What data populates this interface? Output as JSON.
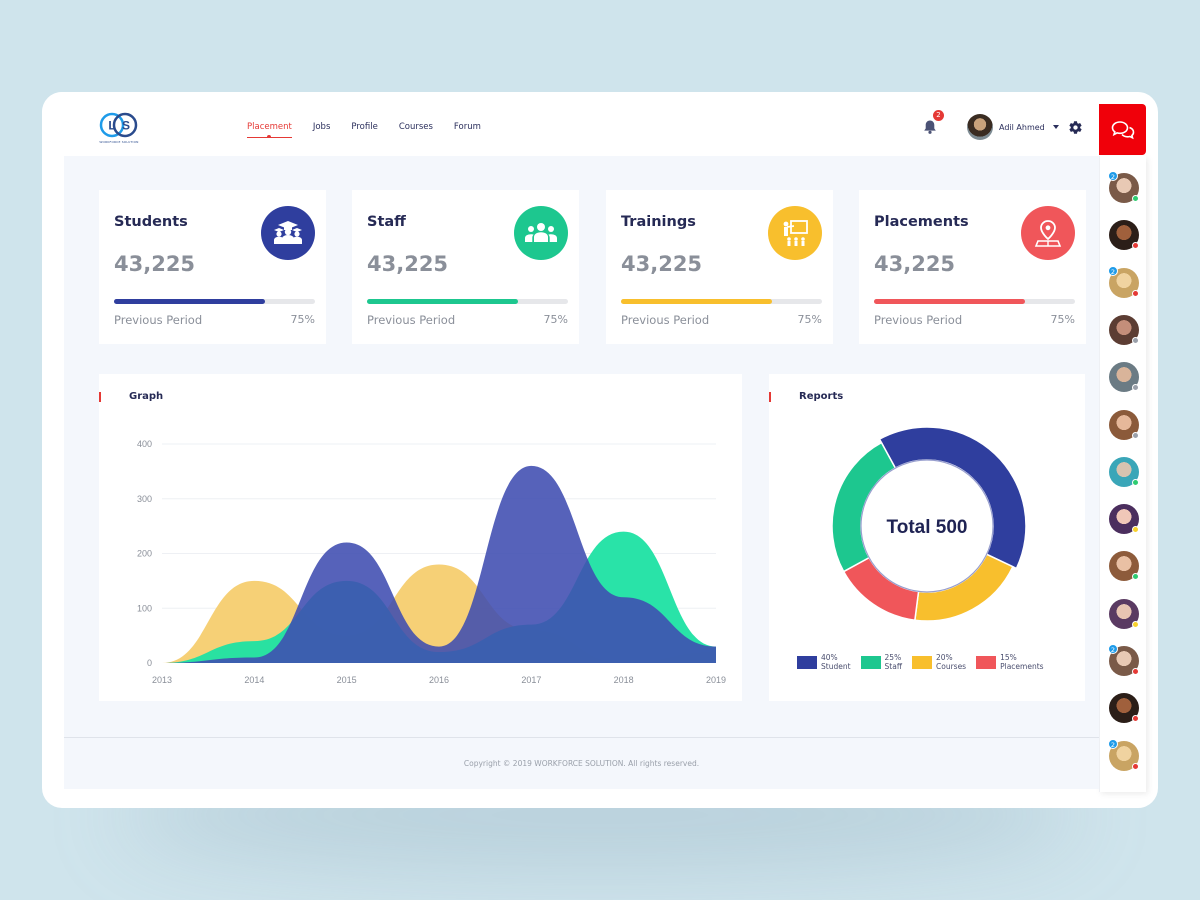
{
  "brand": {
    "logo_text": "WORKFORCE SOLUTION"
  },
  "nav": {
    "items": [
      "Placement",
      "Jobs",
      "Profile",
      "Courses",
      "Forum"
    ],
    "active": "Placement"
  },
  "notifications": {
    "count": "2"
  },
  "user": {
    "name": "Adil Ahmed"
  },
  "stats": [
    {
      "title": "Students",
      "value": "43,225",
      "footer": "Previous Period",
      "percent": "75%",
      "progress": 0.75,
      "color": "#2f3e9e",
      "icon": "graduates-icon"
    },
    {
      "title": "Staff",
      "value": "43,225",
      "footer": "Previous Period",
      "percent": "75%",
      "progress": 0.75,
      "color": "#1dc78f",
      "icon": "group-icon"
    },
    {
      "title": "Trainings",
      "value": "43,225",
      "footer": "Previous Period",
      "percent": "75%",
      "progress": 0.75,
      "color": "#f8bf2d",
      "icon": "presentation-icon"
    },
    {
      "title": "Placements",
      "value": "43,225",
      "footer": "Previous Period",
      "percent": "75%",
      "progress": 0.75,
      "color": "#f0565a",
      "icon": "map-pin-icon"
    }
  ],
  "graph": {
    "title": "Graph"
  },
  "reports": {
    "title": "Reports",
    "total_label": "Total 500"
  },
  "chart_data": [
    {
      "type": "area",
      "title": "Graph",
      "x": [
        "2013",
        "2014",
        "2015",
        "2016",
        "2017",
        "2018",
        "2019"
      ],
      "yticks": [
        0,
        100,
        200,
        300,
        400
      ],
      "ylim": [
        0,
        400
      ],
      "grid": true,
      "series": [
        {
          "values": [
            0,
            150,
            50,
            180,
            60,
            0,
            20
          ],
          "color": "#f5cc6a"
        },
        {
          "values": [
            0,
            40,
            150,
            20,
            70,
            240,
            30
          ],
          "color": "#1de2a3"
        },
        {
          "values": [
            0,
            10,
            220,
            30,
            360,
            120,
            30
          ],
          "color": "#3f4cb0"
        }
      ]
    },
    {
      "type": "pie",
      "title": "Reports",
      "center_label": "Total 500",
      "slices": [
        {
          "label": "Student",
          "percent": "40%",
          "value": 40,
          "color": "#2f3e9e"
        },
        {
          "label": "Courses",
          "percent": "20%",
          "value": 20,
          "color": "#f8bf2d"
        },
        {
          "label": "Placements",
          "percent": "15%",
          "value": 15,
          "color": "#f0565a"
        },
        {
          "label": "Staff",
          "percent": "25%",
          "value": 25,
          "color": "#1dc78f"
        }
      ],
      "legend": [
        {
          "percent": "40%",
          "label": "Student",
          "color": "#2f3e9e"
        },
        {
          "percent": "25%",
          "label": "Staff",
          "color": "#1dc78f"
        },
        {
          "percent": "20%",
          "label": "Courses",
          "color": "#f8bf2d"
        },
        {
          "percent": "15%",
          "label": "Placements",
          "color": "#f0565a"
        }
      ]
    }
  ],
  "contacts": [
    {
      "badge": "2",
      "status": "#2ecc71"
    },
    {
      "badge": "",
      "status": "#e53935"
    },
    {
      "badge": "2",
      "status": "#e53935"
    },
    {
      "badge": "",
      "status": "#9aa0aa"
    },
    {
      "badge": "",
      "status": "#9aa0aa"
    },
    {
      "badge": "",
      "status": "#9aa0aa"
    },
    {
      "badge": "",
      "status": "#2ecc71"
    },
    {
      "badge": "",
      "status": "#f8d12d"
    },
    {
      "badge": "",
      "status": "#2ecc71"
    },
    {
      "badge": "",
      "status": "#f8d12d"
    },
    {
      "badge": "2",
      "status": "#e53935"
    },
    {
      "badge": "",
      "status": "#e53935"
    },
    {
      "badge": "2",
      "status": "#e53935"
    }
  ],
  "footer": {
    "copyright": "Copyright © 2019 WORKFORCE SOLUTION. All rights reserved."
  }
}
